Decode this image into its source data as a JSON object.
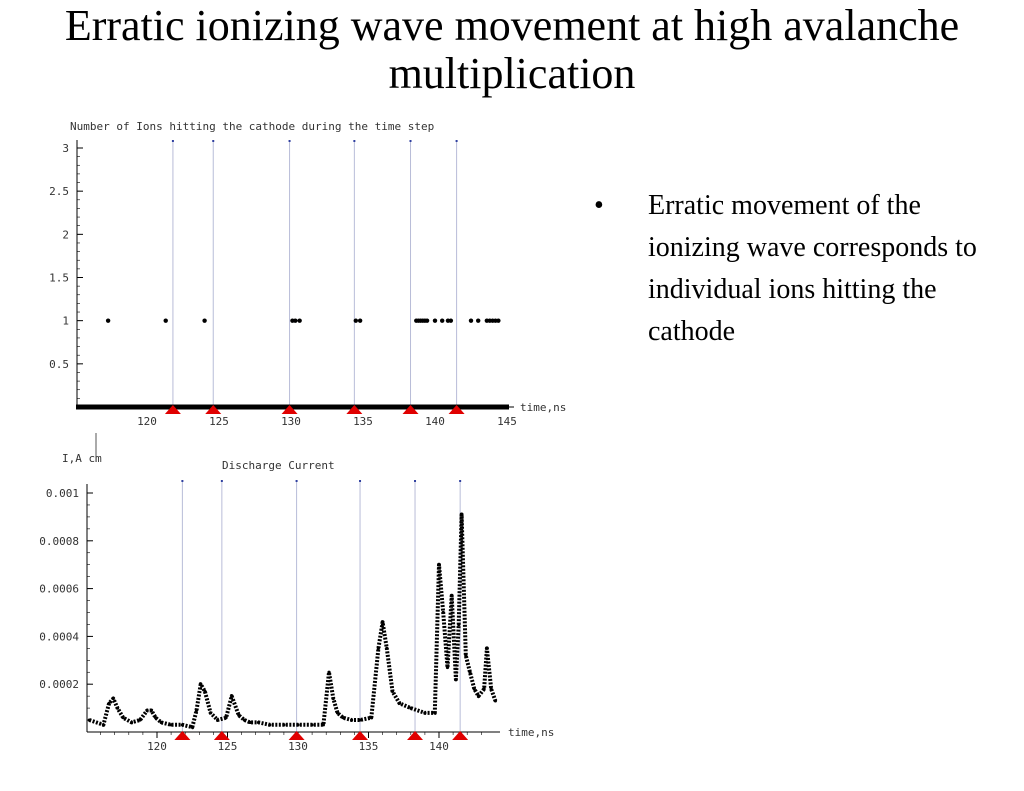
{
  "slide": {
    "title": "Erratic ionizing wave movement at high avalanche multiplication",
    "bullet": "Erratic movement of the ionizing wave corresponds to individual ions hitting the cathode"
  },
  "colors": {
    "marker": "#e00000",
    "guide_line": "#b8bcd8",
    "data": "#000000"
  },
  "chart_data": [
    {
      "type": "scatter",
      "title": "Number of Ions hitting the cathode during the time step",
      "xlabel": "time,ns",
      "ylabel": "",
      "xlim": [
        115.5,
        145
      ],
      "ylim": [
        0,
        3
      ],
      "xticks": [
        "120",
        "125",
        "130",
        "135",
        "140",
        "145"
      ],
      "yticks": [
        "0.5",
        "1",
        "1.5",
        "2",
        "2.5",
        "3"
      ],
      "x_zero_band": [
        115.5,
        145
      ],
      "points": [
        [
          117.3,
          1
        ],
        [
          121.3,
          1
        ],
        [
          124.0,
          1
        ],
        [
          130.1,
          1
        ],
        [
          130.3,
          1
        ],
        [
          130.6,
          1
        ],
        [
          134.5,
          1
        ],
        [
          134.8,
          1
        ],
        [
          138.7,
          1
        ],
        [
          138.85,
          1
        ],
        [
          139.0,
          1
        ],
        [
          139.15,
          1
        ],
        [
          139.3,
          1
        ],
        [
          139.45,
          1
        ],
        [
          140.0,
          1
        ],
        [
          140.5,
          1
        ],
        [
          140.9,
          1
        ],
        [
          141.1,
          1
        ],
        [
          142.5,
          1
        ],
        [
          143.0,
          1
        ],
        [
          143.6,
          1
        ],
        [
          143.8,
          1
        ],
        [
          144.0,
          1
        ],
        [
          144.2,
          1
        ],
        [
          144.4,
          1
        ]
      ],
      "guide_lines_x": [
        121.8,
        124.6,
        129.9,
        134.4,
        138.3,
        141.5
      ],
      "markers_x": [
        121.8,
        124.6,
        129.9,
        134.4,
        138.3,
        141.5
      ]
    },
    {
      "type": "line",
      "title": "Discharge Current",
      "xlabel": "time,ns",
      "ylabel": "I,A cm",
      "xlim": [
        115.2,
        144
      ],
      "ylim": [
        0,
        0.001
      ],
      "xticks": [
        "120",
        "125",
        "130",
        "135",
        "140"
      ],
      "yticks": [
        "0.001",
        "0.0008",
        "0.0006",
        "0.0004",
        "0.0002"
      ],
      "series": [
        {
          "x": [
            115.2,
            116.2,
            116.6,
            116.9,
            117.2,
            117.6,
            118.2,
            118.8,
            119.3,
            119.6,
            119.9,
            120.3,
            121.0,
            121.8,
            122.5,
            122.8,
            123.1,
            123.4,
            123.8,
            124.3,
            124.9,
            125.3,
            125.8,
            126.2,
            126.6,
            127.2,
            128.0,
            129.0,
            130.0,
            131.0,
            131.8,
            132.2,
            132.5,
            132.8,
            133.2,
            133.8,
            134.4,
            135.2,
            135.7,
            136.0,
            136.3,
            136.7,
            137.2,
            138.0,
            139.0,
            139.7,
            140.0,
            140.3,
            140.6,
            140.9,
            141.2,
            141.4,
            141.6,
            141.9,
            142.2,
            142.5,
            142.8,
            143.2,
            143.4,
            143.7,
            144.0
          ],
          "y": [
            5e-05,
            3e-05,
            0.00012,
            0.00014,
            0.0001,
            6e-05,
            4e-05,
            5e-05,
            9e-05,
            9e-05,
            6e-05,
            4e-05,
            3e-05,
            3e-05,
            2e-05,
            9e-05,
            0.0002,
            0.00017,
            8e-05,
            5e-05,
            6e-05,
            0.00015,
            7e-05,
            5e-05,
            4e-05,
            4e-05,
            3e-05,
            3e-05,
            3e-05,
            3e-05,
            3e-05,
            0.00025,
            0.00014,
            8e-05,
            6e-05,
            5e-05,
            5e-05,
            6e-05,
            0.00035,
            0.00046,
            0.00035,
            0.00017,
            0.00012,
            0.0001,
            8e-05,
            8e-05,
            0.0007,
            0.0005,
            0.00027,
            0.00057,
            0.00022,
            0.00045,
            0.00091,
            0.00032,
            0.00025,
            0.00018,
            0.00015,
            0.00018,
            0.00035,
            0.00018,
            0.00013
          ]
        }
      ],
      "guide_lines_x": [
        121.8,
        124.6,
        129.9,
        134.4,
        138.3,
        141.5
      ],
      "markers_x": [
        121.8,
        124.6,
        129.9,
        134.4,
        138.3,
        141.5
      ]
    }
  ]
}
